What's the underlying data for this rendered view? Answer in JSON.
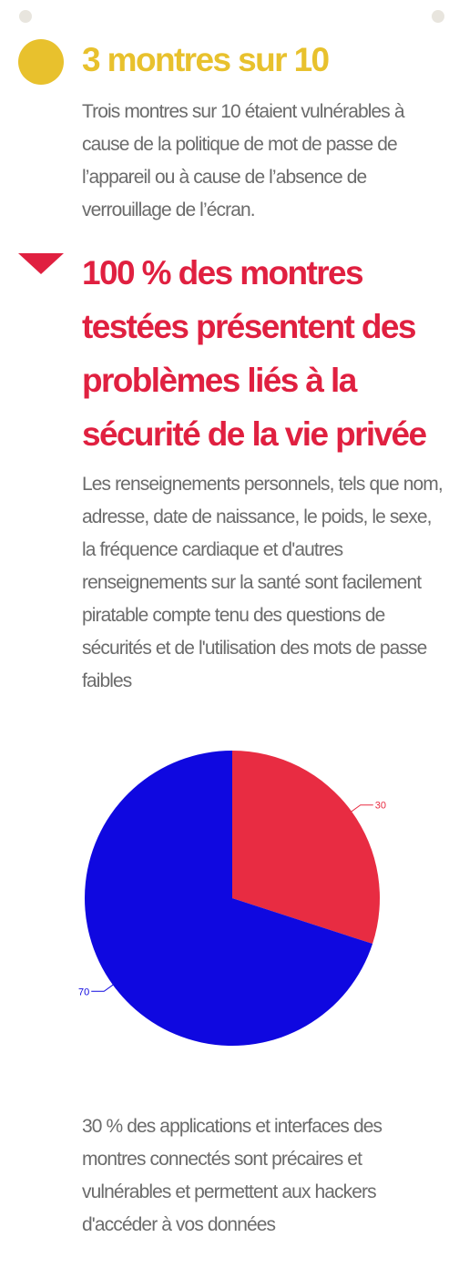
{
  "colors": {
    "yellow": "#e8c12d",
    "red": "#e02040",
    "pie_red": "#e82c42",
    "pie_blue": "#0f08e0",
    "dot": "#e8e5de",
    "text_gray": "#6b6b6b"
  },
  "section1": {
    "heading": "3 montres sur 10",
    "body": "Trois montres sur 10 étaient vulnérables à cause de la politique de mot de passe de l’appareil ou à cause de l’absence de verrouillage de l’écran."
  },
  "section2": {
    "heading": "100 % des montres testées présentent des problèmes liés à la sécurité de la vie privée",
    "body": "Les renseignements personnels, tels que nom, adresse, date de naissance, le poids, le sexe, la fréquence cardiaque et d'autres renseignements sur la santé sont facilement piratable compte tenu des questions de sécurités et de l'utilisation des mots de passe faibles"
  },
  "chart_data": {
    "type": "pie",
    "slices": [
      {
        "value": 30,
        "label": "30",
        "color": "#e82c42"
      },
      {
        "value": 70,
        "label": "70",
        "color": "#0f08e0"
      }
    ],
    "start_angle_deg": 0,
    "direction": "clockwise"
  },
  "footer": {
    "body": "30 % des applications et interfaces des montres connectés sont précaires et vulnérables et permettent aux hackers d'accéder à vos données"
  }
}
